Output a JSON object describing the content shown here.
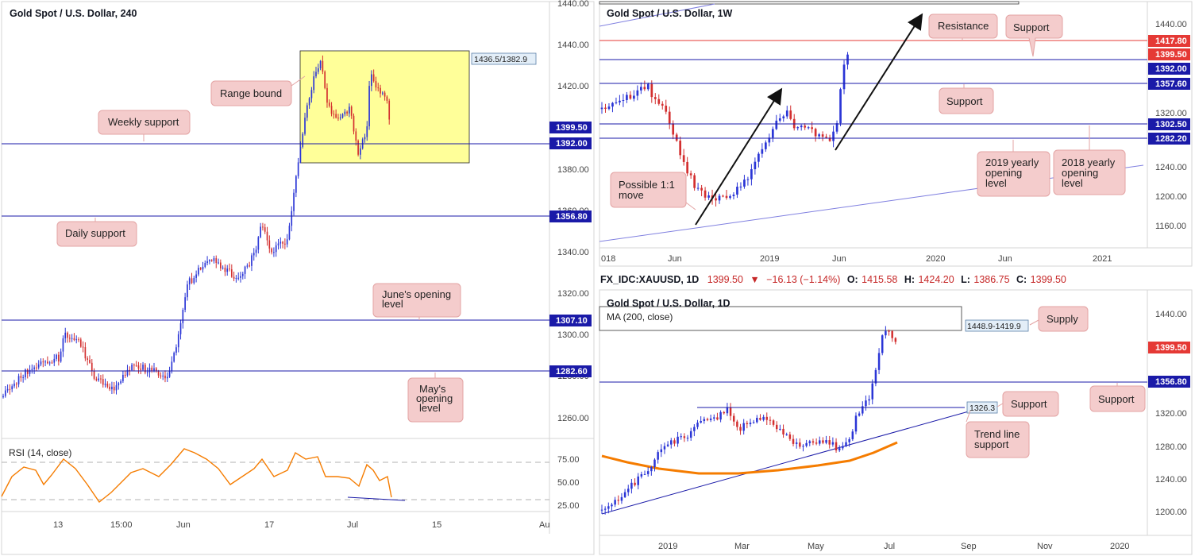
{
  "colors": {
    "up_candle": "#2a35d6",
    "down_candle": "#d32f2f",
    "level_line": "#1a1aa8",
    "badge_blue": "#1a1aa8",
    "badge_red": "#e53935",
    "note_fill": "#f4cccc",
    "note_stroke": "#e3a3a3",
    "range_box": "#ffff99",
    "rsi_line": "#f57c00",
    "ma_line": "#f57c00"
  },
  "panel_4h": {
    "title": "Gold Spot / U.S. Dollar, 240",
    "yticks": [
      "1440.00",
      "1420.00",
      "1400.00",
      "1380.00",
      "1360.00",
      "1340.00",
      "1320.00",
      "1300.00",
      "1280.00",
      "1260.00"
    ],
    "xticks": [
      "13",
      "15:00",
      "Jun",
      "17",
      "Jul",
      "15",
      "Au"
    ],
    "range_label": "1436.5/1382.9",
    "rsi_title": "RSI (14, close)",
    "rsi_ticks": [
      "75.00",
      "50.00",
      "25.00"
    ],
    "badges": [
      {
        "value": "1399.50",
        "color": "blue"
      },
      {
        "value": "1392.00",
        "color": "blue"
      },
      {
        "value": "1356.80",
        "color": "blue"
      },
      {
        "value": "1307.10",
        "color": "blue"
      },
      {
        "value": "1282.60",
        "color": "blue"
      }
    ],
    "notes": {
      "range": "Range bound",
      "weekly": "Weekly support",
      "daily": "Daily support",
      "june_1": "June's opening",
      "june_2": "level",
      "may_1": "May's",
      "may_2": "opening",
      "may_3": "level"
    }
  },
  "panel_1w": {
    "title": "Gold Spot / U.S. Dollar, 1W",
    "yticks": [
      "1440.00",
      "1400.00",
      "1360.00",
      "1320.00",
      "1280.00",
      "1240.00",
      "1200.00",
      "1160.00"
    ],
    "xticks": [
      "018",
      "Jun",
      "2019",
      "Jun",
      "2020",
      "Jun",
      "2021"
    ],
    "badges": [
      {
        "value": "1417.80",
        "color": "red"
      },
      {
        "value": "1399.50",
        "color": "red"
      },
      {
        "value": "1392.00",
        "color": "blue"
      },
      {
        "value": "1357.60",
        "color": "blue"
      },
      {
        "value": "1302.50",
        "color": "blue"
      },
      {
        "value": "1282.20",
        "color": "blue"
      }
    ],
    "notes": {
      "resistance": "Resistance",
      "support_top": "Support",
      "support_mid": "Support",
      "possible_1": "Possible 1:1",
      "possible_2": "move",
      "y2019_1": "2019 yearly",
      "y2019_2": "opening",
      "y2019_3": "level",
      "y2018_1": "2018 yearly",
      "y2018_2": "opening",
      "y2018_3": "level"
    }
  },
  "panel_1d": {
    "header": {
      "symbol": "FX_IDC:XAUUSD, 1D",
      "last": "1399.50",
      "change": "−16.13 (−1.14%)",
      "o_label": "O:",
      "o": "1415.58",
      "h_label": "H:",
      "h": "1424.20",
      "l_label": "L:",
      "l": "1386.75",
      "c_label": "C:",
      "c": "1399.50"
    },
    "title": "Gold Spot / U.S. Dollar, 1D",
    "ma_label": "MA (200, close)",
    "yticks": [
      "1440.00",
      "1400.00",
      "1360.00",
      "1320.00",
      "1280.00",
      "1240.00",
      "1200.00"
    ],
    "xticks": [
      "2019",
      "Mar",
      "May",
      "Jul",
      "Sep",
      "Nov",
      "2020"
    ],
    "supply_label": "1448.9-1419.9",
    "trend_label": "1326.3",
    "badges": [
      {
        "value": "1399.50",
        "color": "red"
      },
      {
        "value": "1356.80",
        "color": "blue"
      }
    ],
    "notes": {
      "supply": "Supply",
      "support_tl": "Support",
      "support_r": "Support",
      "trend_1": "Trend line",
      "trend_2": "support"
    }
  }
}
